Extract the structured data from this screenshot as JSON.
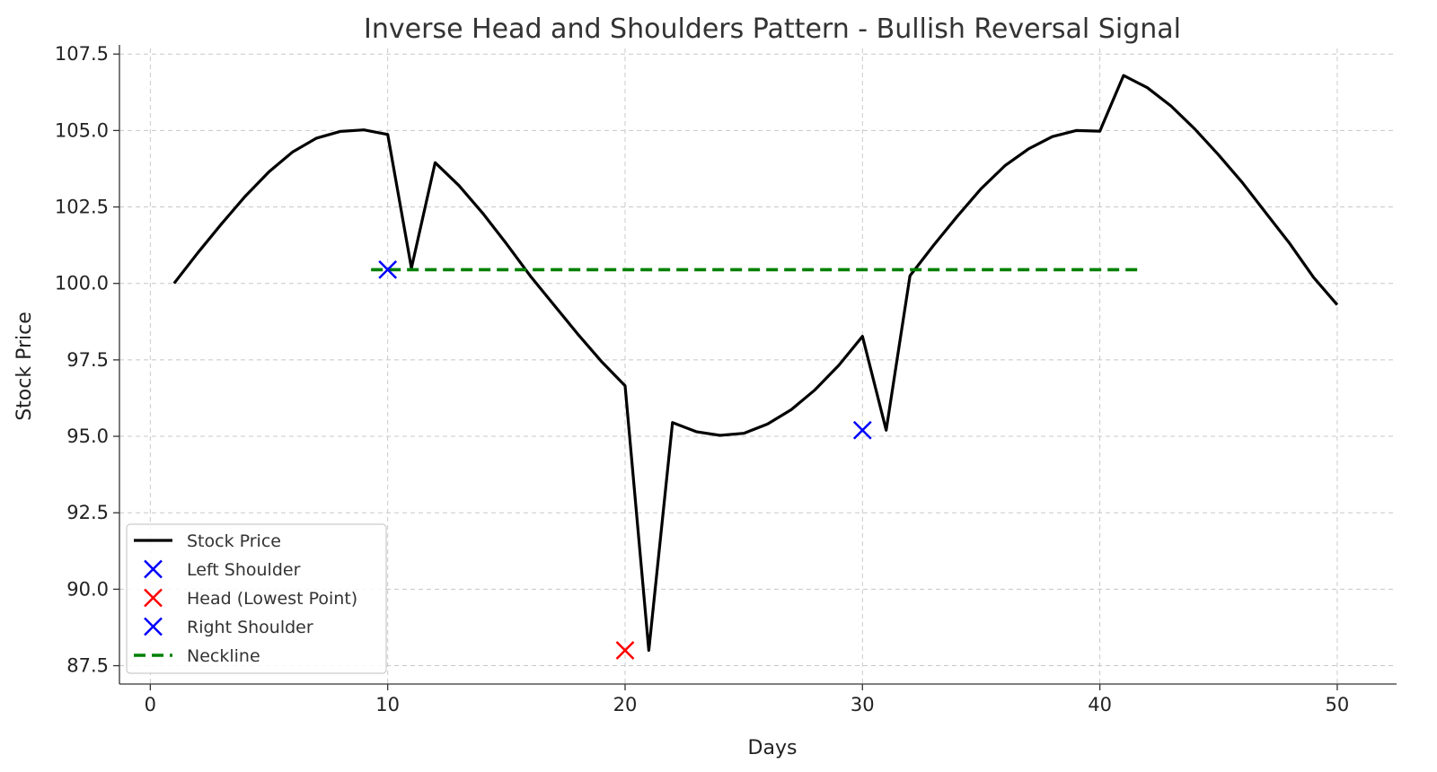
{
  "chart_data": {
    "type": "line",
    "title": "Inverse Head and Shoulders Pattern - Bullish Reversal Signal",
    "xlabel": "Days",
    "ylabel": "Stock Price",
    "xlim": [
      -1.3,
      52.5
    ],
    "ylim": [
      86.9,
      107.8
    ],
    "x_ticks": [
      0,
      10,
      20,
      30,
      40,
      50
    ],
    "y_ticks": [
      87.5,
      90.0,
      92.5,
      95.0,
      97.5,
      100.0,
      102.5,
      105.0,
      107.5
    ],
    "grid": true,
    "legend_position": "lower-left",
    "series": [
      {
        "name": "Stock Price",
        "kind": "line",
        "color": "#000000",
        "x": [
          1,
          2,
          3,
          4,
          5,
          6,
          7,
          8,
          9,
          10,
          11,
          12,
          13,
          14,
          15,
          16,
          17,
          18,
          19,
          20,
          21,
          22,
          23,
          24,
          25,
          26,
          27,
          28,
          29,
          30,
          31,
          32,
          33,
          34,
          35,
          36,
          37,
          38,
          39,
          40,
          41,
          42,
          43,
          44,
          45,
          46,
          47,
          48,
          49,
          50
        ],
        "y": [
          100.0,
          101.0,
          101.95,
          102.85,
          103.65,
          104.3,
          104.75,
          104.97,
          105.02,
          104.87,
          100.5,
          103.95,
          103.2,
          102.3,
          101.3,
          100.25,
          99.3,
          98.35,
          97.45,
          96.65,
          88.0,
          95.45,
          95.15,
          95.03,
          95.1,
          95.4,
          95.87,
          96.52,
          97.32,
          98.27,
          95.2,
          100.25,
          101.25,
          102.2,
          103.1,
          103.85,
          104.4,
          104.8,
          105.0,
          104.98,
          106.8,
          106.4,
          105.8,
          105.05,
          104.2,
          103.3,
          102.3,
          101.3,
          100.2,
          99.3
        ]
      },
      {
        "name": "Left Shoulder",
        "kind": "marker",
        "color": "#0000ff",
        "x": [
          10
        ],
        "y": [
          100.45
        ]
      },
      {
        "name": "Head (Lowest Point)",
        "kind": "marker",
        "color": "#ff0000",
        "x": [
          20
        ],
        "y": [
          88.0
        ]
      },
      {
        "name": "Right Shoulder",
        "kind": "marker",
        "color": "#0000ff",
        "x": [
          30
        ],
        "y": [
          95.2
        ]
      },
      {
        "name": "Neckline",
        "kind": "hline",
        "color": "#008000",
        "x": [
          9.3,
          41.6
        ],
        "y": [
          100.45,
          100.45
        ]
      }
    ]
  }
}
